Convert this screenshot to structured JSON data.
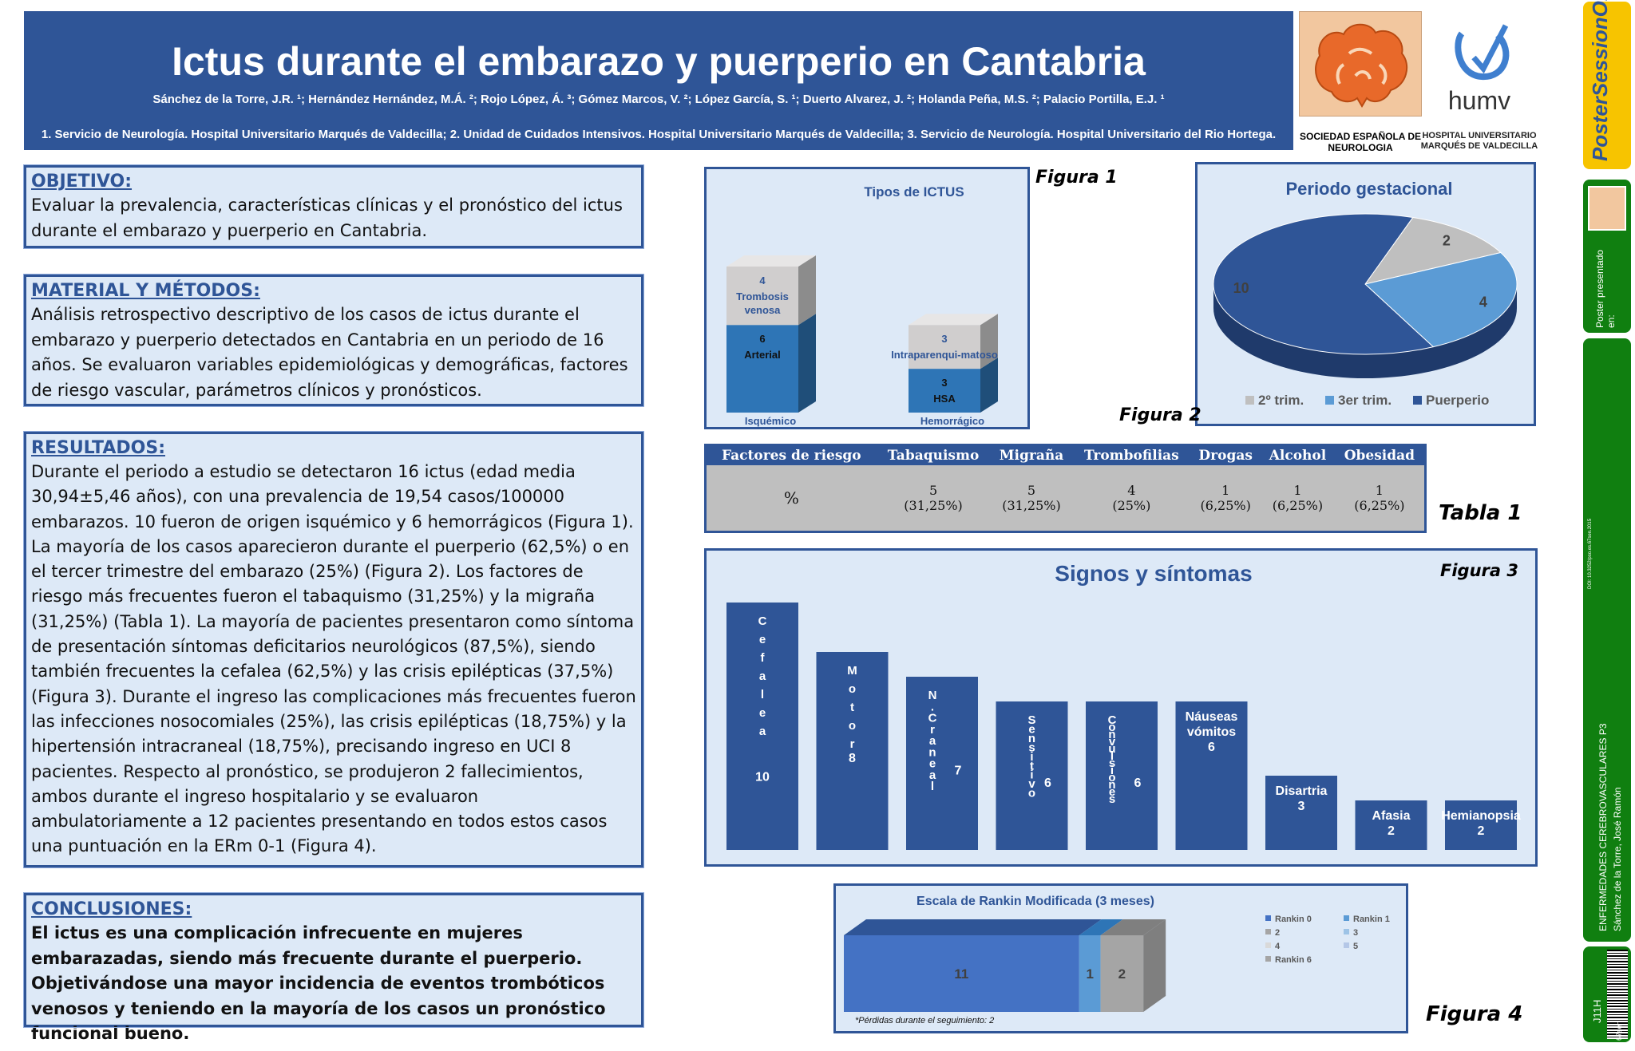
{
  "header": {
    "title": "Ictus durante el embarazo y puerperio en Cantabria",
    "authors": "Sánchez de la Torre, J.R. ¹; Hernández Hernández, M.Á. ²; Rojo López, Á. ³; Gómez Marcos, V. ²; López García, S. ¹; Duerto Alvarez, J. ²; Holanda Peña, M.S. ²; Palacio Portilla, E.J. ¹",
    "affiliations": "1. Servicio de Neurología. Hospital Universitario Marqués de Valdecilla; 2. Unidad de Cuidados Intensivos. Hospital Universitario Marqués de Valdecilla; 3. Servicio de Neurología. Hospital Universitario del Rio Hortega."
  },
  "logos": {
    "sen_text": "SOCIEDAD ESPAÑOLA DE NEUROLOGIA",
    "humv_text": "humv",
    "humv_sub": "HOSPITAL UNIVERSITARIO MARQUÉS DE VALDECILLA"
  },
  "sections": {
    "objetivo": {
      "heading": "OBJETIVO:",
      "body": "Evaluar la prevalencia, características clínicas y el pronóstico del ictus durante el embarazo y puerperio en Cantabria."
    },
    "metodos": {
      "heading": "MATERIAL Y MÉTODOS:",
      "body": "Análisis retrospectivo descriptivo de los casos de ictus durante el embarazo y puerperio detectados en Cantabria en un periodo de 16 años. Se evaluaron variables epidemiológicas y demográficas, factores de riesgo vascular, parámetros clínicos y pronósticos."
    },
    "resultados": {
      "heading": "RESULTADOS:",
      "body": "Durante el periodo a estudio se detectaron 16 ictus (edad media 30,94±5,46 años), con una prevalencia de 19,54 casos/100000 embarazos. 10 fueron de origen isquémico y 6 hemorrágicos (Figura 1). La mayoría de los casos aparecieron durante el puerperio (62,5%) o en el tercer trimestre del embarazo (25%) (Figura 2). Los factores de riesgo más frecuentes fueron el tabaquismo (31,25%) y la migraña (31,25%) (Tabla 1). La mayoría de pacientes presentaron como síntoma de presentación síntomas deficitarios neurológicos (87,5%), siendo también frecuentes la cefalea (62,5%) y las crisis epilépticas (37,5%) (Figura 3). Durante el ingreso las complicaciones más frecuentes fueron las infecciones nosocomiales (25%), las crisis epilépticas (18,75%) y la hipertensión intracraneal (18,75%), precisando ingreso en UCI 8 pacientes. Respecto al pronóstico, se produjeron 2 fallecimientos, ambos durante el ingreso hospitalario y se evaluaron ambulatoriamente a 12 pacientes presentando en todos estos casos una puntuación en la ERm 0-1 (Figura 4)."
    },
    "conclusiones": {
      "heading": "CONCLUSIONES:",
      "body": "El ictus es una complicación infrecuente en mujeres embarazadas, siendo más frecuente durante el puerperio. Objetivándose una mayor incidencia de eventos trombóticos venosos y teniendo en la mayoría de los casos un pronóstico funcional  bueno."
    }
  },
  "figure_labels": {
    "fig1": "Figura 1",
    "fig2": "Figura 2",
    "tab1": "Tabla 1",
    "fig3": "Figura 3",
    "fig4": "Figura 4"
  },
  "colors": {
    "header": "#2f5597",
    "box_bg": "#dde9f7",
    "bar_dark": "#2f5597",
    "bar_mid": "#2e75b6",
    "bar_light": "#d0cece",
    "pie_light_blue": "#5b9bd5",
    "pie_grey": "#bfbfbf",
    "sidebar_yellow": "#f7c400",
    "sidebar_green": "#107f10"
  },
  "chart_data": [
    {
      "type": "bar",
      "title": "Tipos de ICTUS",
      "stacked": true,
      "categories": [
        "Isquémico",
        "Hemorrágico"
      ],
      "series": [
        {
          "name": "",
          "values": [
            6,
            3
          ],
          "labels": [
            "Arterial",
            "HSA"
          ]
        },
        {
          "name": "",
          "values": [
            4,
            3
          ],
          "labels": [
            "Trombosis venosa",
            "Intraparenqui-matoso"
          ]
        }
      ]
    },
    {
      "type": "pie",
      "title": "Periodo gestacional",
      "categories": [
        "2º trim.",
        "3er trim.",
        "Puerperio"
      ],
      "values": [
        2,
        4,
        10
      ],
      "legend": "bottom"
    },
    {
      "type": "table",
      "headers": [
        "Factores de riesgo",
        "Tabaquismo",
        "Migraña",
        "Trombofilias",
        "Drogas",
        "Alcohol",
        "Obesidad"
      ],
      "rows": [
        [
          "%",
          "5\n(31,25%)",
          "5\n(31,25%)",
          "4\n(25%)",
          "1\n(6,25%)",
          "1\n(6,25%)",
          "1\n(6,25%)"
        ]
      ]
    },
    {
      "type": "bar",
      "title": "Signos y síntomas",
      "categories": [
        "Cefalea",
        "Motor",
        "N. Craneal",
        "Sensitivo",
        "Convulsiones",
        "Náuseas vómitos",
        "Disartria",
        "Afasia",
        "Hemianopsia"
      ],
      "values": [
        10,
        8,
        7,
        6,
        6,
        6,
        3,
        2,
        2
      ],
      "ylim": [
        0,
        10
      ]
    },
    {
      "type": "bar",
      "title": "Escala de Rankin Modificada (3 meses)",
      "stacked": true,
      "orientation": "horizontal",
      "series": [
        {
          "name": "Rankin 0",
          "values": [
            11
          ]
        },
        {
          "name": "Rankin 1",
          "values": [
            1
          ]
        },
        {
          "name": "2",
          "values": [
            0
          ]
        },
        {
          "name": "3",
          "values": [
            0
          ]
        },
        {
          "name": "4",
          "values": [
            0
          ]
        },
        {
          "name": "5",
          "values": [
            0
          ]
        },
        {
          "name": "Rankin 6",
          "values": [
            2
          ]
        }
      ],
      "legend": "right",
      "note": "*Pérdidas durante el seguimiento: 2"
    }
  ],
  "sidebar": {
    "logo_top": "PosterSessionOnline",
    "presented": "Poster presentado en:",
    "doi": "DOI: 10.3252/pso.es.67sen.2015",
    "session": "ENFERMEDADES CEREBROVASCULARES P3",
    "author": "Sánchez de la Torre, José Ramón",
    "code": "J11H",
    "barcode_text": "67sen"
  }
}
